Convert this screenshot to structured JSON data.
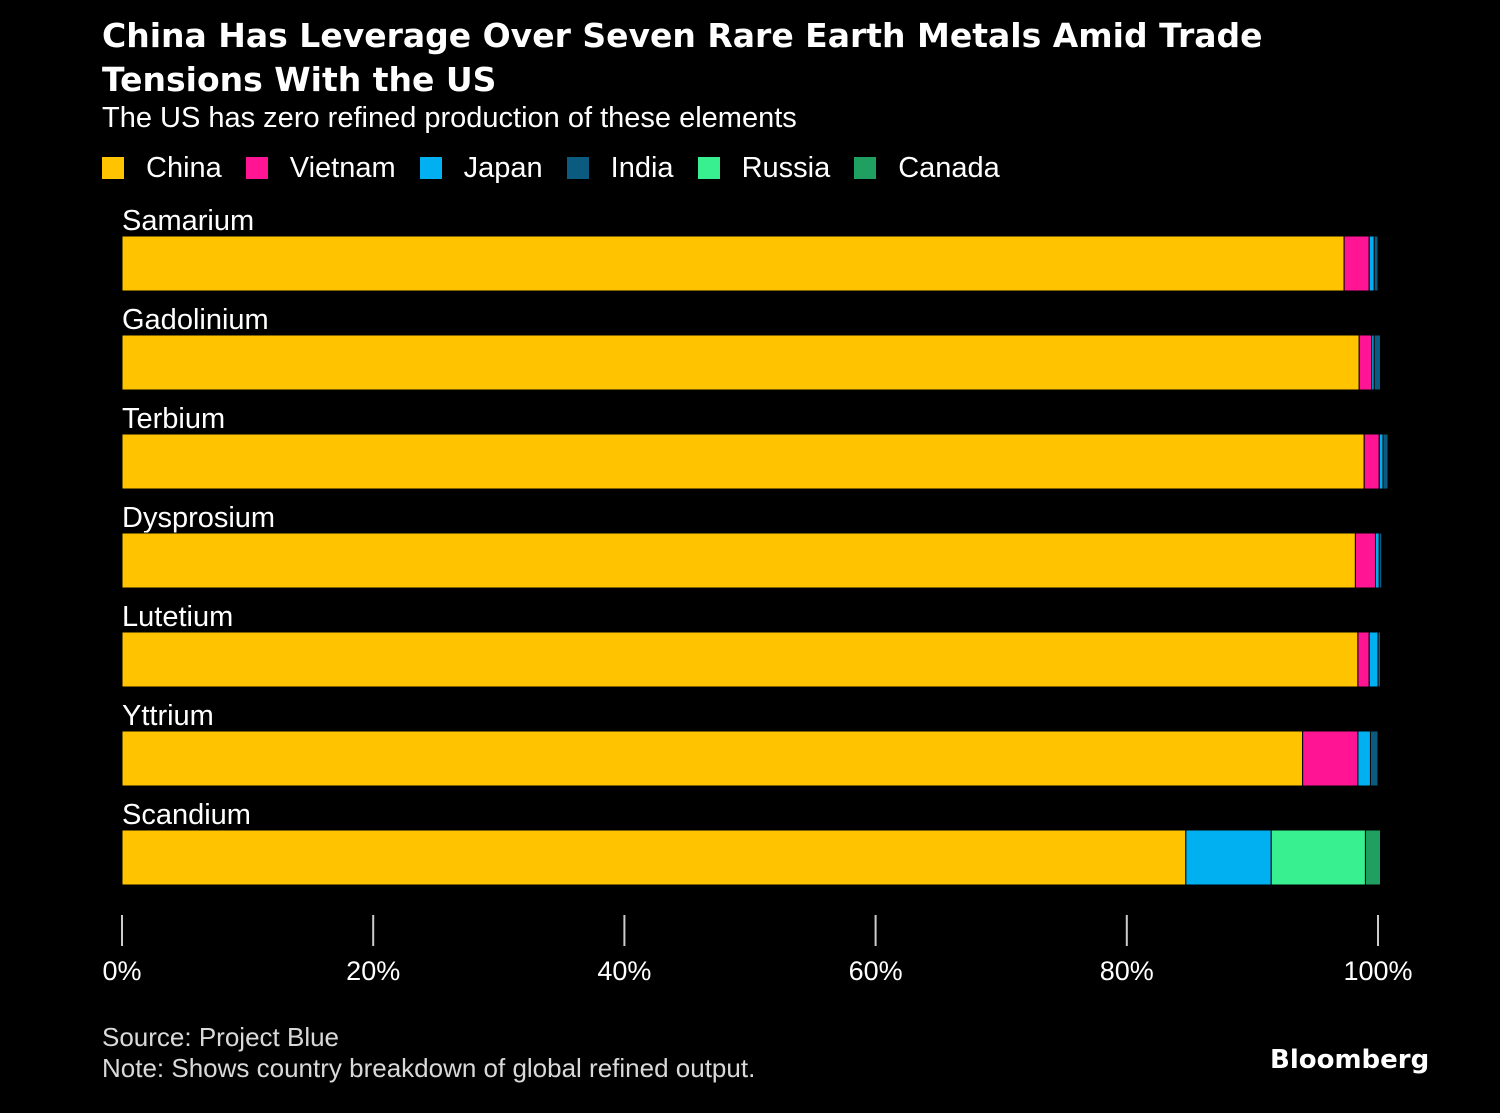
{
  "title": "China Has Leverage Over Seven Rare Earth Metals Amid Trade Tensions With the US",
  "subtitle": "The US has zero refined production of these elements",
  "source": "Source: Project Blue",
  "note": "Note: Shows country breakdown of global refined output.",
  "brand": "Bloomberg",
  "chart_data": {
    "type": "bar",
    "orientation": "horizontal",
    "stacked": true,
    "categories": [
      "Samarium",
      "Gadolinium",
      "Terbium",
      "Dysprosium",
      "Lutetium",
      "Yttrium",
      "Scandium"
    ],
    "series": [
      {
        "name": "China",
        "color": "#ffc300",
        "values": [
          97.3,
          98.5,
          98.9,
          98.2,
          98.4,
          94.0,
          84.7
        ]
      },
      {
        "name": "Vietnam",
        "color": "#ff1493",
        "values": [
          2.0,
          1.0,
          1.2,
          1.6,
          0.9,
          4.4,
          0.0
        ]
      },
      {
        "name": "Japan",
        "color": "#00b0f0",
        "values": [
          0.4,
          0.2,
          0.3,
          0.3,
          0.7,
          1.0,
          6.8
        ]
      },
      {
        "name": "India",
        "color": "#0a5b7f",
        "values": [
          0.3,
          0.5,
          0.4,
          0.2,
          0.2,
          0.6,
          0.0
        ]
      },
      {
        "name": "Russia",
        "color": "#38f08f",
        "values": [
          0.0,
          0.0,
          0.0,
          0.0,
          0.0,
          0.0,
          7.5
        ]
      },
      {
        "name": "Canada",
        "color": "#1fa060",
        "values": [
          0.0,
          0.0,
          0.0,
          0.0,
          0.0,
          0.0,
          1.2
        ]
      }
    ],
    "xlim": [
      0,
      100
    ],
    "xticks": [
      0,
      20,
      40,
      60,
      80,
      100
    ],
    "xtick_labels": [
      "0%",
      "20%",
      "40%",
      "60%",
      "80%",
      "100%"
    ],
    "grid": false,
    "legend_position": "top-left"
  }
}
